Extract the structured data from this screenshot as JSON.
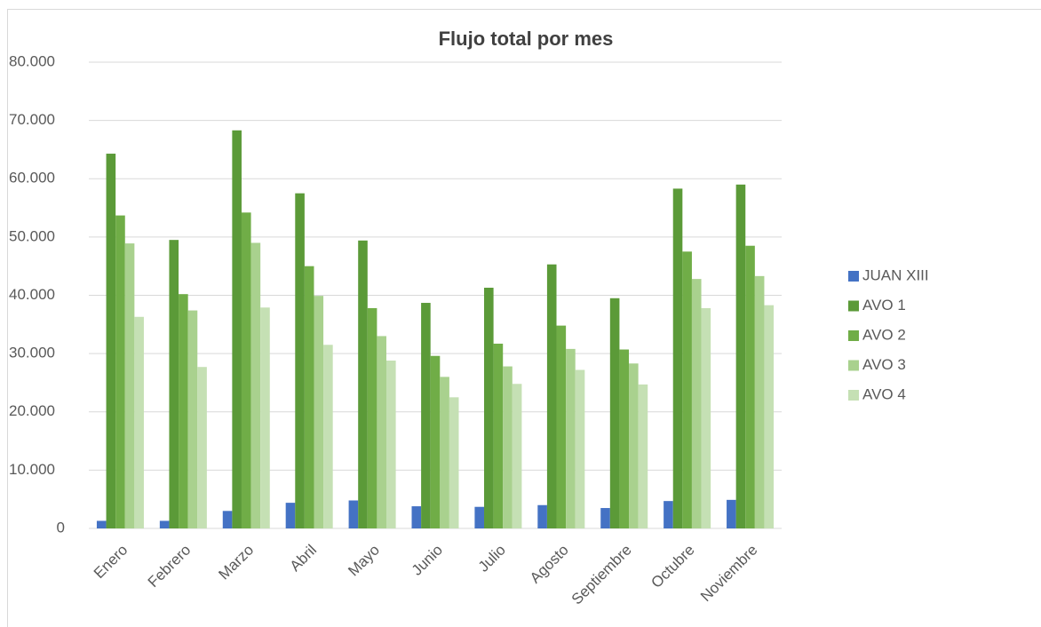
{
  "chart_data": {
    "type": "bar",
    "title": "Flujo total por mes",
    "categories": [
      "Enero",
      "Febrero",
      "Marzo",
      "Abril",
      "Mayo",
      "Junio",
      "Julio",
      "Agosto",
      "Septiembre",
      "Octubre",
      "Noviembre"
    ],
    "series": [
      {
        "name": "JUAN XIII",
        "color": "#4472c4",
        "values": [
          1300,
          1300,
          3000,
          4400,
          4800,
          3800,
          3700,
          4000,
          3500,
          4700,
          4900
        ]
      },
      {
        "name": "AVO 1",
        "color": "#5b9a38",
        "values": [
          64300,
          49500,
          68300,
          57500,
          49400,
          38700,
          41300,
          45300,
          39500,
          58300,
          59000
        ]
      },
      {
        "name": "AVO 2",
        "color": "#70ad47",
        "values": [
          53700,
          40200,
          54200,
          45000,
          37800,
          29600,
          31700,
          34800,
          30700,
          47500,
          48500
        ]
      },
      {
        "name": "AVO 3",
        "color": "#a9d18e",
        "values": [
          48900,
          37400,
          49000,
          39900,
          33000,
          26000,
          27800,
          30800,
          28300,
          42800,
          43300
        ]
      },
      {
        "name": "AVO 4",
        "color": "#c5e0b4",
        "values": [
          36300,
          27700,
          37900,
          31500,
          28800,
          22500,
          24800,
          27200,
          24700,
          37800,
          38300
        ]
      }
    ],
    "ylim": [
      0,
      80000
    ],
    "yticks": [
      0,
      {
        "value": 10000,
        "label": "10.000"
      },
      {
        "value": 20000,
        "label": "20.000"
      },
      {
        "value": 30000,
        "label": "30.000"
      },
      {
        "value": 40000,
        "label": "40.000"
      },
      {
        "value": 50000,
        "label": "50.000"
      },
      {
        "value": 60000,
        "label": "60.000"
      },
      {
        "value": 70000,
        "label": "70.000"
      },
      {
        "value": 80000,
        "label": "80.000"
      }
    ],
    "grid": true,
    "legend": "right"
  }
}
